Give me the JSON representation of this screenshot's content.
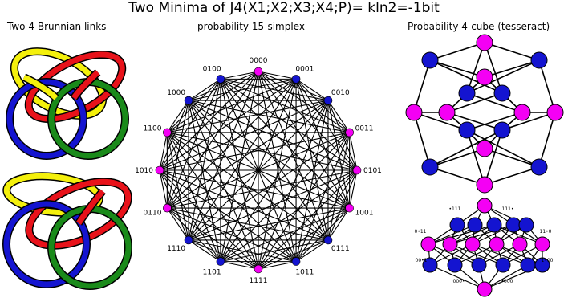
{
  "title": "Two Minima of J4(X1;X2;X3;X4;P)= kln2=-1bit",
  "panels": {
    "links": {
      "title": "Two 4-Brunnian links"
    },
    "simplex": {
      "title": "probability 15-simplex"
    },
    "cube": {
      "title": "Probability 4-cube (tesseract)"
    }
  },
  "colors": {
    "red": "#e8121a",
    "yellow": "#f4f00c",
    "green": "#1a8a1a",
    "blue": "#1414d0",
    "magenta": "#f400f4",
    "edge": "#000000"
  },
  "simplex": {
    "vertices": [
      {
        "label": "0000",
        "color": "magenta"
      },
      {
        "label": "0001",
        "color": "blue"
      },
      {
        "label": "0010",
        "color": "blue"
      },
      {
        "label": "0011",
        "color": "magenta"
      },
      {
        "label": "0101",
        "color": "magenta"
      },
      {
        "label": "1001",
        "color": "magenta"
      },
      {
        "label": "0111",
        "color": "blue"
      },
      {
        "label": "1011",
        "color": "blue"
      },
      {
        "label": "1111",
        "color": "magenta"
      },
      {
        "label": "1101",
        "color": "blue"
      },
      {
        "label": "1110",
        "color": "blue"
      },
      {
        "label": "0110",
        "color": "magenta"
      },
      {
        "label": "1010",
        "color": "magenta"
      },
      {
        "label": "1100",
        "color": "magenta"
      },
      {
        "label": "1000",
        "color": "blue"
      },
      {
        "label": "0100",
        "color": "blue"
      }
    ]
  },
  "lattice": {
    "labels": [
      "•111",
      "111•",
      "0•11",
      "11•0",
      "00•1",
      "1•00",
      "000•",
      "•000"
    ]
  }
}
